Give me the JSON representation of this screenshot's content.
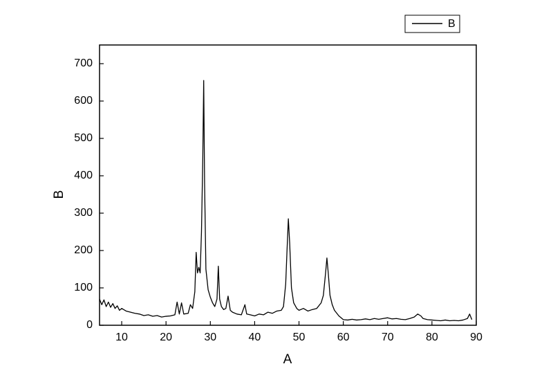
{
  "chart_data": {
    "type": "line",
    "x_label": "A",
    "y_label": "B",
    "xlim": [
      5,
      90
    ],
    "ylim": [
      0,
      750
    ],
    "xticks": [
      10,
      20,
      30,
      40,
      50,
      60,
      70,
      80,
      90
    ],
    "yticks": [
      0,
      100,
      200,
      300,
      400,
      500,
      600,
      700
    ],
    "legend": "top-right",
    "x": [
      5,
      5.5,
      6,
      6.5,
      7,
      7.5,
      8,
      8.5,
      9,
      9.5,
      10,
      11,
      12,
      13,
      14,
      15,
      16,
      17,
      18,
      19,
      20,
      21,
      22,
      22.5,
      23,
      23.5,
      24,
      25,
      25.5,
      26,
      26.5,
      26.8,
      27.1,
      27.4,
      27.7,
      28,
      28.3,
      28.5,
      28.7,
      29,
      29.5,
      30,
      30.5,
      31,
      31.5,
      31.8,
      32.1,
      32.5,
      33,
      33.5,
      34,
      34.5,
      35,
      36,
      37,
      37.8,
      38.2,
      39,
      40,
      41,
      42,
      43,
      44,
      45,
      46,
      46.5,
      47,
      47.3,
      47.6,
      47.9,
      48.3,
      48.8,
      49.5,
      50,
      51,
      52,
      53,
      54,
      55,
      55.5,
      56,
      56.3,
      56.6,
      57,
      57.5,
      58,
      59,
      60,
      61,
      62,
      63,
      64,
      65,
      66,
      67,
      68,
      69,
      70,
      71,
      72,
      73,
      74,
      75,
      76,
      76.8,
      77.5,
      78,
      79,
      80,
      81,
      82,
      83,
      84,
      85,
      86,
      87,
      88,
      88.5,
      89
    ],
    "series": [
      {
        "name": "B",
        "color": "#000000",
        "values": [
          70,
          55,
          68,
          50,
          62,
          48,
          58,
          45,
          52,
          40,
          45,
          38,
          35,
          32,
          30,
          26,
          28,
          24,
          26,
          22,
          24,
          25,
          28,
          62,
          30,
          60,
          30,
          32,
          55,
          45,
          90,
          195,
          140,
          155,
          140,
          250,
          450,
          655,
          380,
          150,
          95,
          75,
          60,
          50,
          70,
          158,
          70,
          50,
          42,
          45,
          78,
          40,
          35,
          30,
          28,
          55,
          30,
          28,
          25,
          30,
          28,
          35,
          32,
          38,
          40,
          50,
          110,
          200,
          285,
          220,
          100,
          60,
          45,
          40,
          45,
          38,
          42,
          45,
          60,
          80,
          140,
          180,
          140,
          80,
          55,
          40,
          25,
          15,
          14,
          16,
          14,
          15,
          17,
          15,
          18,
          16,
          18,
          20,
          17,
          18,
          16,
          15,
          18,
          22,
          30,
          25,
          18,
          15,
          14,
          13,
          12,
          14,
          12,
          13,
          12,
          14,
          18,
          30,
          15
        ]
      }
    ]
  }
}
